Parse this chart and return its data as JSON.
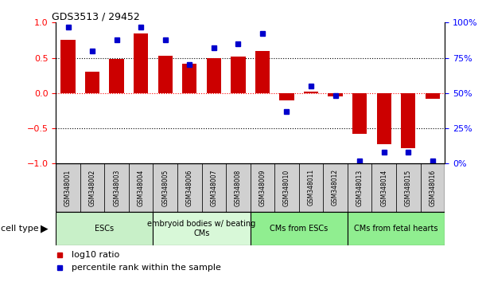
{
  "title": "GDS3513 / 29452",
  "samples": [
    "GSM348001",
    "GSM348002",
    "GSM348003",
    "GSM348004",
    "GSM348005",
    "GSM348006",
    "GSM348007",
    "GSM348008",
    "GSM348009",
    "GSM348010",
    "GSM348011",
    "GSM348012",
    "GSM348013",
    "GSM348014",
    "GSM348015",
    "GSM348016"
  ],
  "log10_ratio": [
    0.75,
    0.3,
    0.48,
    0.85,
    0.53,
    0.42,
    0.5,
    0.52,
    0.6,
    -0.1,
    0.02,
    -0.05,
    -0.58,
    -0.72,
    -0.78,
    -0.08
  ],
  "percentile_rank": [
    97,
    80,
    88,
    97,
    88,
    70,
    82,
    85,
    92,
    37,
    55,
    48,
    2,
    8,
    8,
    2
  ],
  "cell_types": [
    {
      "label": "ESCs",
      "start": 0,
      "end": 4,
      "color": "#c8f0c8"
    },
    {
      "label": "embryoid bodies w/ beating\nCMs",
      "start": 4,
      "end": 8,
      "color": "#d8f8d8"
    },
    {
      "label": "CMs from ESCs",
      "start": 8,
      "end": 12,
      "color": "#90EE90"
    },
    {
      "label": "CMs from fetal hearts",
      "start": 12,
      "end": 16,
      "color": "#90EE90"
    }
  ],
  "bar_color": "#CC0000",
  "dot_color": "#0000CC",
  "left_ylim": [
    -1,
    1
  ],
  "right_ylim": [
    0,
    100
  ],
  "left_yticks": [
    -1,
    -0.5,
    0,
    0.5,
    1
  ],
  "right_yticks": [
    0,
    25,
    50,
    75,
    100
  ],
  "right_yticklabels": [
    "0%",
    "25%",
    "50%",
    "75%",
    "100%"
  ],
  "background_color": "#ffffff",
  "cell_type_label": "cell type",
  "sample_box_color": "#d0d0d0",
  "legend_items": [
    {
      "color": "#CC0000",
      "label": "log10 ratio"
    },
    {
      "color": "#0000CC",
      "label": "percentile rank within the sample"
    }
  ]
}
